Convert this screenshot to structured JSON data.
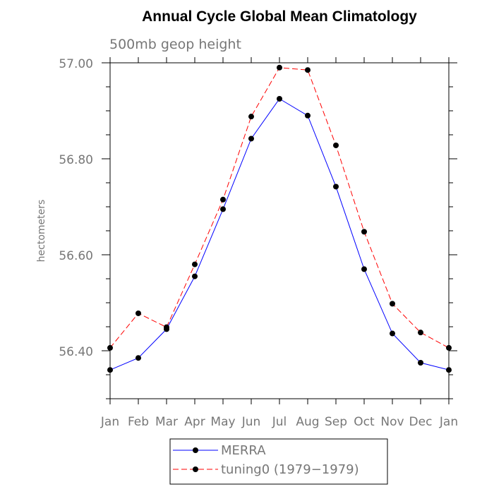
{
  "chart_data": {
    "type": "line",
    "title": "Annual Cycle Global Mean Climatology",
    "subtitle": "500mb geop height",
    "xlabel": "",
    "ylabel": "hectometers",
    "categories": [
      "Jan",
      "Feb",
      "Mar",
      "Apr",
      "May",
      "Jun",
      "Jul",
      "Aug",
      "Sep",
      "Oct",
      "Nov",
      "Dec",
      "Jan"
    ],
    "ylim": [
      56.3,
      57.0
    ],
    "yticks_major": [
      56.4,
      56.6,
      56.8,
      57.0
    ],
    "ytick_labels": [
      "56.40",
      "56.60",
      "56.80",
      "57.00"
    ],
    "grid": false,
    "legend_position": "bottom",
    "series": [
      {
        "name": "MERRA",
        "color": "#0000ff",
        "dash": "solid",
        "values": [
          56.36,
          56.385,
          56.445,
          56.555,
          56.695,
          56.842,
          56.925,
          56.89,
          56.742,
          56.57,
          56.436,
          56.375,
          56.36
        ]
      },
      {
        "name": "tuning0 (1979−1979)",
        "color": "#ff0000",
        "dash": "dashed",
        "values": [
          56.406,
          56.478,
          56.449,
          56.58,
          56.715,
          56.888,
          56.99,
          56.985,
          56.828,
          56.648,
          56.498,
          56.438,
          56.406
        ]
      }
    ]
  }
}
